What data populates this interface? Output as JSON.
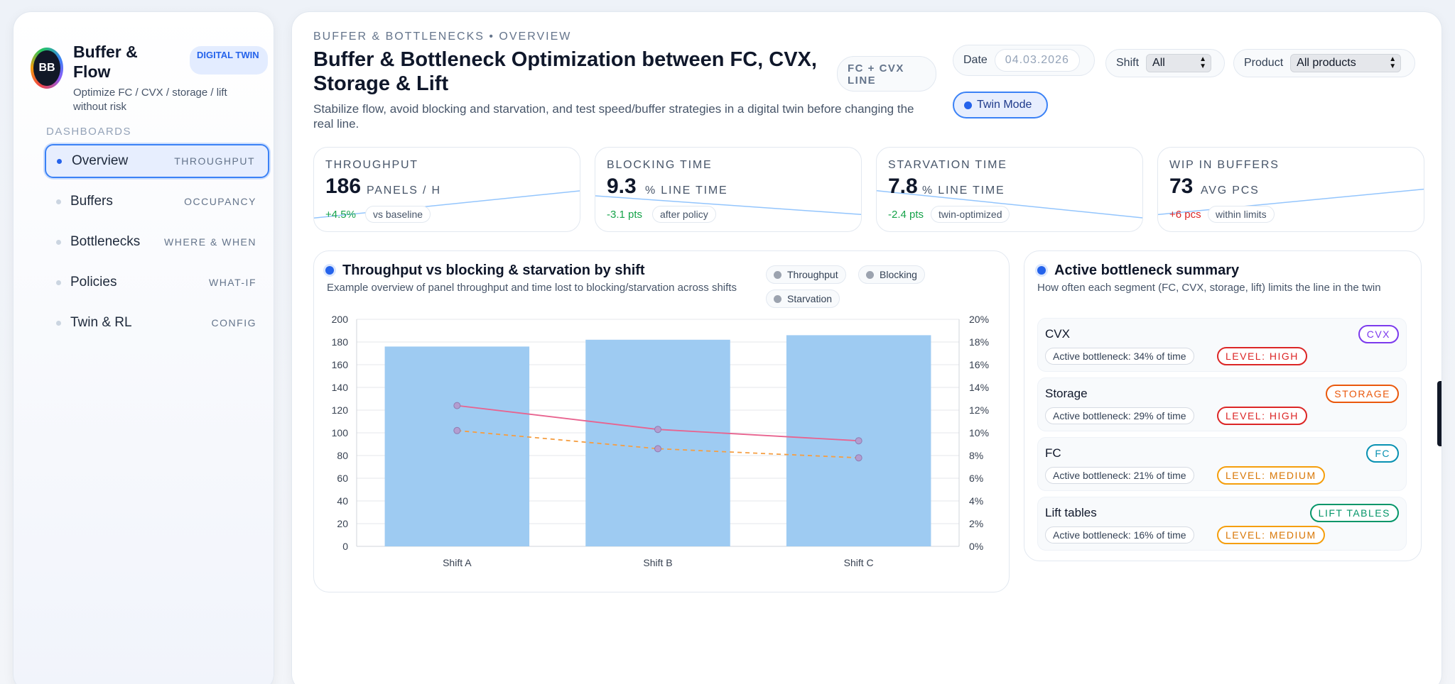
{
  "sidebar": {
    "logo_text": "BB",
    "title": "Buffer & Flow",
    "badge": "DIGITAL TWIN",
    "subtitle": "Optimize FC / CVX / storage / lift without risk",
    "section_label": "DASHBOARDS",
    "items": [
      {
        "label": "Overview",
        "tag": "THROUGHPUT",
        "active": true
      },
      {
        "label": "Buffers",
        "tag": "OCCUPANCY",
        "active": false
      },
      {
        "label": "Bottlenecks",
        "tag": "WHERE & WHEN",
        "active": false
      },
      {
        "label": "Policies",
        "tag": "WHAT-IF",
        "active": false
      },
      {
        "label": "Twin & RL",
        "tag": "CONFIG",
        "active": false
      }
    ]
  },
  "header": {
    "breadcrumb": "BUFFER & BOTTLENECKS • OVERVIEW",
    "title": "Buffer & Bottleneck Optimization between FC, CVX, Storage & Lift",
    "line_pill": "FC + CVX LINE",
    "subtitle": "Stabilize flow, avoid blocking and starvation, and test speed/buffer strategies in a digital twin before changing the real line.",
    "filters": {
      "date_label": "Date",
      "date_value": "04.03.2026",
      "shift_label": "Shift",
      "shift_value": "All",
      "product_label": "Product",
      "product_value": "All products"
    },
    "twin_button": "Twin Mode"
  },
  "kpis": [
    {
      "label": "THROUGHPUT",
      "value": "186",
      "unit": "PANELS / H",
      "delta": "+4.5%",
      "delta_color": "#16a34a",
      "note": "vs baseline",
      "trend": [
        0.1,
        0.9
      ]
    },
    {
      "label": "BLOCKING TIME",
      "value": "9.3",
      "unit": "% LINE TIME",
      "delta": "-3.1 pts",
      "delta_color": "#16a34a",
      "note": "after policy",
      "trend": [
        0.75,
        0.2
      ]
    },
    {
      "label": "STARVATION TIME",
      "value": "7.8",
      "unit": "% LINE TIME",
      "delta": "-2.4 pts",
      "delta_color": "#16a34a",
      "note": "twin-optimized",
      "trend": [
        0.9,
        0.1
      ]
    },
    {
      "label": "WIP IN BUFFERS",
      "value": "73",
      "unit": "AVG PCS",
      "delta": "+6 pcs",
      "delta_color": "#dc2626",
      "note": "within limits",
      "trend": [
        0.2,
        0.95
      ]
    }
  ],
  "chart_card": {
    "title": "Throughput vs blocking & starvation by shift",
    "subtitle": "Example overview of panel throughput and time lost to blocking/starvation across shifts",
    "legend": [
      "Throughput",
      "Blocking",
      "Starvation"
    ]
  },
  "chart_data": {
    "type": "bar",
    "title": "Throughput vs blocking & starvation by shift",
    "categories": [
      "Shift A",
      "Shift B",
      "Shift C"
    ],
    "series": [
      {
        "name": "Throughput",
        "type": "bar",
        "axis": "left",
        "values": [
          176,
          182,
          186
        ],
        "color": "#9ecbf2"
      },
      {
        "name": "Blocking",
        "type": "line",
        "axis": "right",
        "values": [
          12.4,
          10.3,
          9.3
        ],
        "color": "#e8638f"
      },
      {
        "name": "Starvation",
        "type": "line",
        "axis": "right",
        "values": [
          10.2,
          8.6,
          7.8
        ],
        "color": "#f59e42",
        "dashed": true
      }
    ],
    "y_left": {
      "min": 0,
      "max": 200,
      "step": 20,
      "ticks": [
        "0",
        "20",
        "40",
        "60",
        "80",
        "100",
        "120",
        "140",
        "160",
        "180",
        "200"
      ]
    },
    "y_right": {
      "min": 0,
      "max": 20,
      "step": 2,
      "ticks": [
        "0%",
        "2%",
        "4%",
        "6%",
        "8%",
        "10%",
        "12%",
        "14%",
        "16%",
        "18%",
        "20%"
      ]
    },
    "grid": true
  },
  "bottleneck_card": {
    "title": "Active bottleneck summary",
    "subtitle": "How often each segment (FC, CVX, storage, lift) limits the line in the twin",
    "items": [
      {
        "name": "CVX",
        "tag": "CVX",
        "tag_color": "#7c3aed",
        "share": "Active bottleneck: 34% of time",
        "level": "LEVEL: HIGH",
        "level_class": "lvl-high"
      },
      {
        "name": "Storage",
        "tag": "STORAGE",
        "tag_color": "#ea580c",
        "share": "Active bottleneck: 29% of time",
        "level": "LEVEL: HIGH",
        "level_class": "lvl-high"
      },
      {
        "name": "FC",
        "tag": "FC",
        "tag_color": "#0891b2",
        "share": "Active bottleneck: 21% of time",
        "level": "LEVEL: MEDIUM",
        "level_class": "lvl-med"
      },
      {
        "name": "Lift tables",
        "tag": "LIFT TABLES",
        "tag_color": "#059669",
        "share": "Active bottleneck: 16% of time",
        "level": "LEVEL: MEDIUM",
        "level_class": "lvl-med"
      }
    ]
  }
}
